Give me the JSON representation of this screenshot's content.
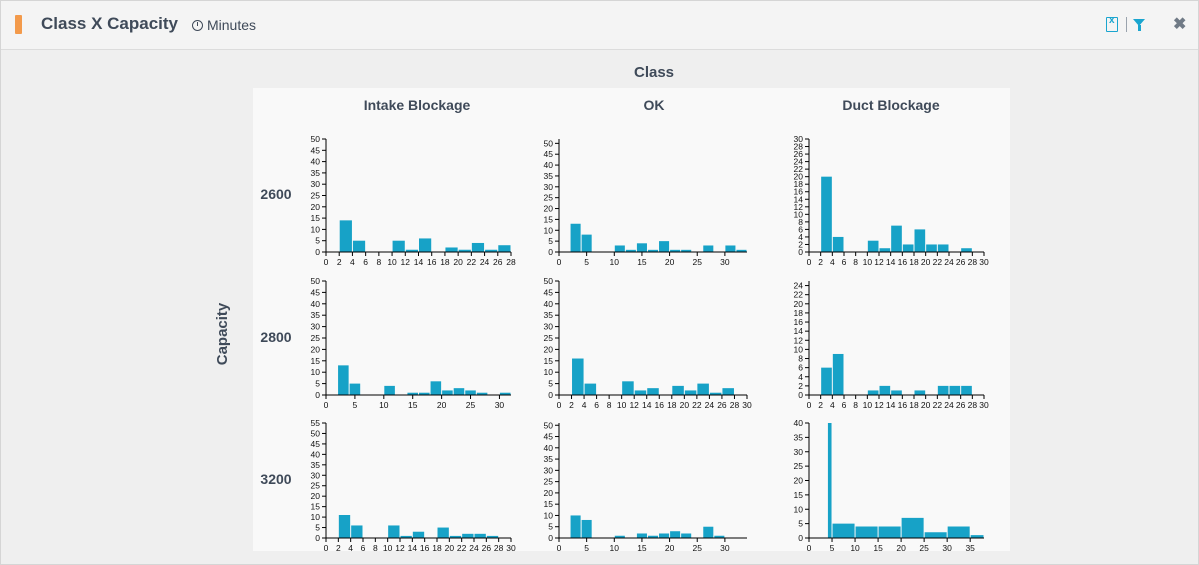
{
  "header": {
    "title": "Class X Capacity",
    "units_label": "Minutes",
    "accent_color": "#f39a4b",
    "tool_color": "#1aa5cf",
    "icons": [
      "clock-icon",
      "excel-export-icon",
      "filter-icon",
      "close-icon"
    ]
  },
  "chart_data": {
    "type": "bar",
    "facet_column_title": "Class",
    "facet_row_title": "Capacity",
    "columns": [
      "Intake Blockage",
      "OK",
      "Duct Blockage"
    ],
    "rows": [
      "2600",
      "2800",
      "3200"
    ],
    "bar_color": "#17a2c7",
    "grid": false,
    "panels": [
      {
        "row": "2600",
        "column": "Intake Blockage",
        "x_ticks": [
          0,
          2,
          4,
          6,
          8,
          10,
          12,
          14,
          16,
          18,
          20,
          22,
          24,
          26,
          28
        ],
        "xlim": [
          0,
          28
        ],
        "y_ticks": [
          0,
          5,
          10,
          15,
          20,
          25,
          30,
          35,
          40,
          45,
          50
        ],
        "ylim": [
          0,
          50
        ],
        "bins": [
          {
            "x0": 2,
            "x1": 4,
            "y": 14
          },
          {
            "x0": 4,
            "x1": 6,
            "y": 5
          },
          {
            "x0": 10,
            "x1": 12,
            "y": 5
          },
          {
            "x0": 12,
            "x1": 14,
            "y": 1
          },
          {
            "x0": 14,
            "x1": 16,
            "y": 6
          },
          {
            "x0": 18,
            "x1": 20,
            "y": 2
          },
          {
            "x0": 20,
            "x1": 22,
            "y": 1
          },
          {
            "x0": 22,
            "x1": 24,
            "y": 4
          },
          {
            "x0": 24,
            "x1": 26,
            "y": 1
          },
          {
            "x0": 26,
            "x1": 28,
            "y": 3
          }
        ]
      },
      {
        "row": "2600",
        "column": "OK",
        "x_ticks": [
          0,
          5,
          10,
          15,
          20,
          25,
          30
        ],
        "xlim": [
          0,
          34
        ],
        "y_ticks": [
          0,
          5,
          10,
          15,
          20,
          25,
          30,
          35,
          40,
          45,
          50
        ],
        "ylim": [
          0,
          52
        ],
        "bins": [
          {
            "x0": 2,
            "x1": 4,
            "y": 13
          },
          {
            "x0": 4,
            "x1": 6,
            "y": 8
          },
          {
            "x0": 10,
            "x1": 12,
            "y": 3
          },
          {
            "x0": 12,
            "x1": 14,
            "y": 1
          },
          {
            "x0": 14,
            "x1": 16,
            "y": 4
          },
          {
            "x0": 16,
            "x1": 18,
            "y": 1
          },
          {
            "x0": 18,
            "x1": 20,
            "y": 5
          },
          {
            "x0": 20,
            "x1": 22,
            "y": 1
          },
          {
            "x0": 22,
            "x1": 24,
            "y": 1
          },
          {
            "x0": 26,
            "x1": 28,
            "y": 3
          },
          {
            "x0": 30,
            "x1": 32,
            "y": 3
          },
          {
            "x0": 32,
            "x1": 34,
            "y": 1
          }
        ]
      },
      {
        "row": "2600",
        "column": "Duct Blockage",
        "x_ticks": [
          0,
          2,
          4,
          6,
          8,
          10,
          12,
          14,
          16,
          18,
          20,
          22,
          24,
          26,
          28,
          30
        ],
        "xlim": [
          0,
          30
        ],
        "y_ticks": [
          0,
          2,
          4,
          6,
          8,
          10,
          12,
          14,
          16,
          18,
          20,
          22,
          24,
          26,
          28,
          30
        ],
        "ylim": [
          0,
          30
        ],
        "bins": [
          {
            "x0": 2,
            "x1": 4,
            "y": 20
          },
          {
            "x0": 4,
            "x1": 6,
            "y": 4
          },
          {
            "x0": 10,
            "x1": 12,
            "y": 3
          },
          {
            "x0": 12,
            "x1": 14,
            "y": 1
          },
          {
            "x0": 14,
            "x1": 16,
            "y": 7
          },
          {
            "x0": 16,
            "x1": 18,
            "y": 2
          },
          {
            "x0": 18,
            "x1": 20,
            "y": 6
          },
          {
            "x0": 20,
            "x1": 22,
            "y": 2
          },
          {
            "x0": 22,
            "x1": 24,
            "y": 2
          },
          {
            "x0": 26,
            "x1": 28,
            "y": 1
          }
        ]
      },
      {
        "row": "2800",
        "column": "Intake Blockage",
        "x_ticks": [
          0,
          5,
          10,
          15,
          20,
          25,
          30
        ],
        "xlim": [
          0,
          32
        ],
        "y_ticks": [
          0,
          5,
          10,
          15,
          20,
          25,
          30,
          35,
          40,
          45,
          50
        ],
        "ylim": [
          0,
          50
        ],
        "bins": [
          {
            "x0": 2,
            "x1": 4,
            "y": 13
          },
          {
            "x0": 4,
            "x1": 6,
            "y": 5
          },
          {
            "x0": 10,
            "x1": 12,
            "y": 4
          },
          {
            "x0": 14,
            "x1": 16,
            "y": 1
          },
          {
            "x0": 16,
            "x1": 18,
            "y": 1
          },
          {
            "x0": 18,
            "x1": 20,
            "y": 6
          },
          {
            "x0": 20,
            "x1": 22,
            "y": 2
          },
          {
            "x0": 22,
            "x1": 24,
            "y": 3
          },
          {
            "x0": 24,
            "x1": 26,
            "y": 2
          },
          {
            "x0": 26,
            "x1": 28,
            "y": 1
          },
          {
            "x0": 30,
            "x1": 32,
            "y": 1
          }
        ]
      },
      {
        "row": "2800",
        "column": "OK",
        "x_ticks": [
          0,
          2,
          4,
          6,
          8,
          10,
          12,
          14,
          16,
          18,
          20,
          22,
          24,
          26,
          28,
          30
        ],
        "xlim": [
          0,
          30
        ],
        "y_ticks": [
          0,
          5,
          10,
          15,
          20,
          25,
          30,
          35,
          40,
          45,
          50
        ],
        "ylim": [
          0,
          50
        ],
        "bins": [
          {
            "x0": 2,
            "x1": 4,
            "y": 16
          },
          {
            "x0": 4,
            "x1": 6,
            "y": 5
          },
          {
            "x0": 10,
            "x1": 12,
            "y": 6
          },
          {
            "x0": 12,
            "x1": 14,
            "y": 2
          },
          {
            "x0": 14,
            "x1": 16,
            "y": 3
          },
          {
            "x0": 18,
            "x1": 20,
            "y": 4
          },
          {
            "x0": 20,
            "x1": 22,
            "y": 2
          },
          {
            "x0": 22,
            "x1": 24,
            "y": 5
          },
          {
            "x0": 24,
            "x1": 26,
            "y": 1
          },
          {
            "x0": 26,
            "x1": 28,
            "y": 3
          }
        ]
      },
      {
        "row": "2800",
        "column": "Duct Blockage",
        "x_ticks": [
          0,
          2,
          4,
          6,
          8,
          10,
          12,
          14,
          16,
          18,
          20,
          22,
          24,
          26,
          28,
          30
        ],
        "xlim": [
          0,
          30
        ],
        "y_ticks": [
          0,
          2,
          4,
          6,
          8,
          10,
          12,
          14,
          16,
          18,
          20,
          22,
          24
        ],
        "ylim": [
          0,
          25
        ],
        "bins": [
          {
            "x0": 2,
            "x1": 4,
            "y": 6
          },
          {
            "x0": 4,
            "x1": 6,
            "y": 9
          },
          {
            "x0": 10,
            "x1": 12,
            "y": 1
          },
          {
            "x0": 12,
            "x1": 14,
            "y": 2
          },
          {
            "x0": 14,
            "x1": 16,
            "y": 1
          },
          {
            "x0": 18,
            "x1": 20,
            "y": 1
          },
          {
            "x0": 22,
            "x1": 24,
            "y": 2
          },
          {
            "x0": 24,
            "x1": 26,
            "y": 2
          },
          {
            "x0": 26,
            "x1": 28,
            "y": 2
          }
        ]
      },
      {
        "row": "3200",
        "column": "Intake Blockage",
        "x_ticks": [
          0,
          2,
          4,
          6,
          8,
          10,
          12,
          14,
          16,
          18,
          20,
          22,
          24,
          26,
          28,
          30
        ],
        "xlim": [
          0,
          30
        ],
        "y_ticks": [
          0,
          5,
          10,
          15,
          20,
          25,
          30,
          35,
          40,
          45,
          50,
          55
        ],
        "ylim": [
          0,
          55
        ],
        "bins": [
          {
            "x0": 2,
            "x1": 4,
            "y": 11
          },
          {
            "x0": 4,
            "x1": 6,
            "y": 6
          },
          {
            "x0": 10,
            "x1": 12,
            "y": 6
          },
          {
            "x0": 12,
            "x1": 14,
            "y": 1
          },
          {
            "x0": 14,
            "x1": 16,
            "y": 3
          },
          {
            "x0": 18,
            "x1": 20,
            "y": 5
          },
          {
            "x0": 20,
            "x1": 22,
            "y": 1
          },
          {
            "x0": 22,
            "x1": 24,
            "y": 2
          },
          {
            "x0": 24,
            "x1": 26,
            "y": 2
          },
          {
            "x0": 26,
            "x1": 28,
            "y": 1
          }
        ]
      },
      {
        "row": "3200",
        "column": "OK",
        "x_ticks": [
          0,
          5,
          10,
          15,
          20,
          25,
          30
        ],
        "xlim": [
          0,
          34
        ],
        "y_ticks": [
          0,
          5,
          10,
          15,
          20,
          25,
          30,
          35,
          40,
          45,
          50
        ],
        "ylim": [
          0,
          51
        ],
        "bins": [
          {
            "x0": 2,
            "x1": 4,
            "y": 10
          },
          {
            "x0": 4,
            "x1": 6,
            "y": 8
          },
          {
            "x0": 10,
            "x1": 12,
            "y": 1
          },
          {
            "x0": 14,
            "x1": 16,
            "y": 2
          },
          {
            "x0": 16,
            "x1": 18,
            "y": 1
          },
          {
            "x0": 18,
            "x1": 20,
            "y": 2
          },
          {
            "x0": 20,
            "x1": 22,
            "y": 3
          },
          {
            "x0": 22,
            "x1": 24,
            "y": 2
          },
          {
            "x0": 26,
            "x1": 28,
            "y": 5
          },
          {
            "x0": 28,
            "x1": 30,
            "y": 1
          }
        ]
      },
      {
        "row": "3200",
        "column": "Duct Blockage",
        "x_ticks": [
          0,
          5,
          10,
          15,
          20,
          25,
          30,
          35
        ],
        "xlim": [
          0,
          38
        ],
        "y_ticks": [
          0,
          5,
          10,
          15,
          20,
          25,
          30,
          35,
          40
        ],
        "ylim": [
          0,
          40
        ],
        "bins": [
          {
            "x0": 4,
            "x1": 5,
            "y": 40
          },
          {
            "x0": 5,
            "x1": 10,
            "y": 5
          },
          {
            "x0": 10,
            "x1": 15,
            "y": 4
          },
          {
            "x0": 15,
            "x1": 20,
            "y": 4
          },
          {
            "x0": 20,
            "x1": 25,
            "y": 7
          },
          {
            "x0": 25,
            "x1": 30,
            "y": 2
          },
          {
            "x0": 30,
            "x1": 35,
            "y": 4
          },
          {
            "x0": 35,
            "x1": 38,
            "y": 1
          }
        ]
      }
    ]
  }
}
